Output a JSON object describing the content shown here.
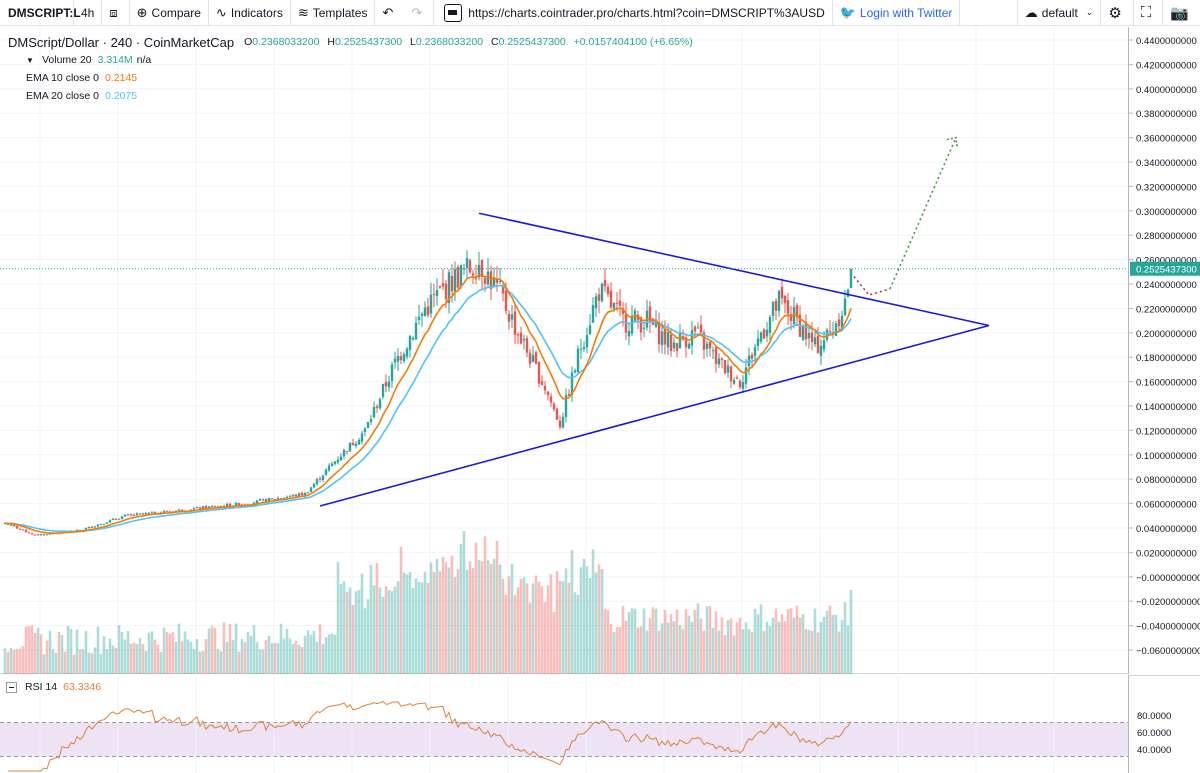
{
  "toolbar": {
    "symbol": "DMSCRIPT:L",
    "interval": "4h",
    "compare": "Compare",
    "indicators": "Indicators",
    "templates": "Templates",
    "url": "https://charts.cointrader.pro/charts.html?coin=DMSCRIPT%3AUSD",
    "twitter": "Login with Twitter",
    "layout": "default"
  },
  "legend": {
    "title": "DMScript/Dollar · 240 · CoinMarketCap",
    "open_label": "O",
    "open": "0.2368033200",
    "high_label": "H",
    "high": "0.2525437300",
    "low_label": "L",
    "low": "0.2368033200",
    "close_label": "C",
    "close": "0.2525437300",
    "change": "+0.0157404100 (+6.65%)",
    "volume_label": "Volume 20",
    "volume_value": "3.314M",
    "volume_na": "n/a",
    "ema10_label": "EMA 10 close 0",
    "ema10_value": "0.2145",
    "ema20_label": "EMA 20 close 0",
    "ema20_value": "0.2075"
  },
  "rsi": {
    "label": "RSI 14",
    "value": "63.3346",
    "ticks": [
      "80.0000",
      "60.0000",
      "40.0000"
    ],
    "upper": 70,
    "lower": 30
  },
  "price_axis": {
    "ticks": [
      "0.4400000000",
      "0.4200000000",
      "0.4000000000",
      "0.3800000000",
      "0.3600000000",
      "0.3400000000",
      "0.3200000000",
      "0.3000000000",
      "0.2800000000",
      "0.2600000000",
      "0.2400000000",
      "0.2200000000",
      "0.2000000000",
      "0.1800000000",
      "0.1600000000",
      "0.1400000000",
      "0.1200000000",
      "0.1000000000",
      "0.0800000000",
      "0.0600000000",
      "0.0400000000",
      "0.0200000000",
      "−0.0000000000",
      "−0.0200000000",
      "−0.0400000000",
      "−0.0600000000"
    ],
    "current": "0.2525437300"
  },
  "colors": {
    "up": "#26a69a",
    "down": "#ef5350",
    "ema10": "#f57c00",
    "ema20": "#4fc3f7",
    "trendline": "#1a1ad6",
    "projection": "#3a9a3a",
    "projection_pullback": "#d32f2f",
    "rsi_line": "#e0823c",
    "rsi_band": "#ede3f5"
  },
  "chart_data": {
    "type": "candlestick",
    "title": "DMScript/Dollar · 240 · CoinMarketCap",
    "y_range": [
      -0.07,
      0.45
    ],
    "anchors": [
      [
        0,
        0.044
      ],
      [
        10,
        0.034
      ],
      [
        25,
        0.038
      ],
      [
        40,
        0.05
      ],
      [
        60,
        0.055
      ],
      [
        80,
        0.06
      ],
      [
        100,
        0.068
      ],
      [
        110,
        0.095
      ],
      [
        120,
        0.12
      ],
      [
        130,
        0.175
      ],
      [
        140,
        0.22
      ],
      [
        150,
        0.245
      ],
      [
        158,
        0.258
      ],
      [
        165,
        0.232
      ],
      [
        172,
        0.195
      ],
      [
        180,
        0.155
      ],
      [
        185,
        0.125
      ],
      [
        192,
        0.19
      ],
      [
        198,
        0.235
      ],
      [
        206,
        0.21
      ],
      [
        214,
        0.21
      ],
      [
        222,
        0.19
      ],
      [
        230,
        0.2
      ],
      [
        238,
        0.175
      ],
      [
        245,
        0.16
      ],
      [
        252,
        0.2
      ],
      [
        258,
        0.225
      ],
      [
        264,
        0.21
      ],
      [
        270,
        0.188
      ],
      [
        275,
        0.2
      ],
      [
        280,
        0.225
      ],
      [
        282,
        0.2525
      ]
    ],
    "candle_count": 283,
    "trendlines": {
      "upper": {
        "from": [
          158,
          0.298
        ],
        "to": [
          328,
          0.206
        ]
      },
      "lower": {
        "from": [
          105,
          0.058
        ],
        "to": [
          328,
          0.206
        ]
      }
    },
    "projection": {
      "points": [
        [
          283,
          0.246
        ],
        [
          288,
          0.231
        ],
        [
          295,
          0.236
        ],
        [
          317,
          0.36
        ]
      ]
    }
  }
}
